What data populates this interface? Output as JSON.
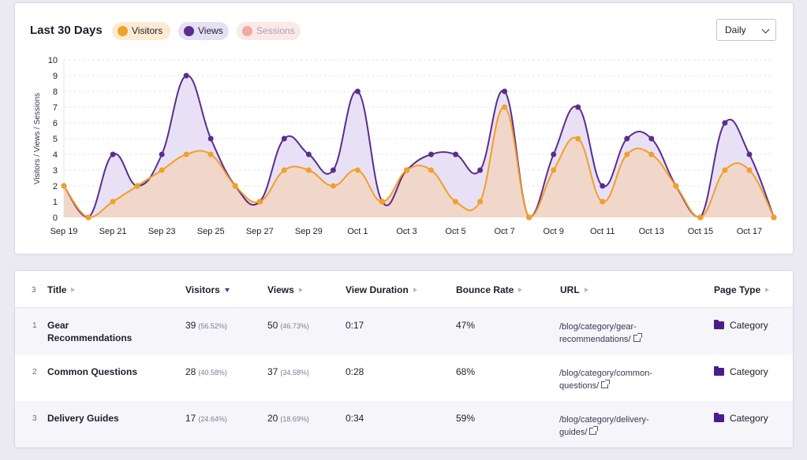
{
  "chart_card": {
    "title": "Last 30 Days",
    "legend": [
      {
        "label": "Visitors",
        "color": "#f1a028"
      },
      {
        "label": "Views",
        "color": "#5b2d8e"
      },
      {
        "label": "Sessions",
        "color": "#f2a6a6"
      }
    ],
    "range_select": "Daily"
  },
  "chart_data": {
    "type": "area",
    "ylabel": "Visitors / Views / Sessions",
    "xlabel": "",
    "ylim": [
      0,
      10
    ],
    "y_ticks": [
      "0",
      "1",
      "2",
      "3",
      "4",
      "5",
      "6",
      "7",
      "8",
      "9",
      "10"
    ],
    "x": [
      "Sep 19",
      "Sep 20",
      "Sep 21",
      "Sep 22",
      "Sep 23",
      "Sep 24",
      "Sep 25",
      "Sep 26",
      "Sep 27",
      "Sep 28",
      "Sep 29",
      "Sep 30",
      "Oct 1",
      "Oct 2",
      "Oct 3",
      "Oct 4",
      "Oct 5",
      "Oct 6",
      "Oct 7",
      "Oct 8",
      "Oct 9",
      "Oct 10",
      "Oct 11",
      "Oct 12",
      "Oct 13",
      "Oct 14",
      "Oct 15",
      "Oct 16",
      "Oct 17",
      "Oct 18"
    ],
    "x_tick_labels": [
      "Sep 19",
      "Sep 21",
      "Sep 23",
      "Sep 25",
      "Sep 27",
      "Sep 29",
      "Oct 1",
      "Oct 3",
      "Oct 5",
      "Oct 7",
      "Oct 9",
      "Oct 11",
      "Oct 13",
      "Oct 15",
      "Oct 17"
    ],
    "series": [
      {
        "name": "Views",
        "color": "#5b2d8e",
        "fill": "#e4dcf3",
        "values": [
          2,
          0,
          4,
          2,
          4,
          9,
          5,
          2,
          1,
          5,
          4,
          3,
          8,
          1,
          3,
          4,
          4,
          3,
          8,
          0,
          4,
          7,
          2,
          5,
          5,
          2,
          0,
          6,
          4,
          0
        ]
      },
      {
        "name": "Visitors",
        "color": "#f1a028",
        "fill": "#f2d3c2",
        "values": [
          2,
          0,
          1,
          2,
          3,
          4,
          4,
          2,
          1,
          3,
          3,
          2,
          3,
          1,
          3,
          3,
          1,
          1,
          7,
          0,
          3,
          5,
          1,
          4,
          4,
          2,
          0,
          3,
          3,
          0
        ]
      }
    ],
    "grid": true,
    "legend_position": "top-left"
  },
  "table": {
    "row_count": "3",
    "headers": {
      "title": "Title",
      "visitors": "Visitors",
      "views": "Views",
      "view_duration": "View Duration",
      "bounce_rate": "Bounce Rate",
      "url": "URL",
      "page_type": "Page Type"
    },
    "rows": [
      {
        "num": "1",
        "title": "Gear Recommendations",
        "visitors": "39",
        "visitors_pct": "(56.52%)",
        "views": "50",
        "views_pct": "(46.73%)",
        "duration": "0:17",
        "bounce": "47%",
        "url": "/blog/category/gear-recommendations/",
        "type": "Category"
      },
      {
        "num": "2",
        "title": "Common Questions",
        "visitors": "28",
        "visitors_pct": "(40.58%)",
        "views": "37",
        "views_pct": "(34.58%)",
        "duration": "0:28",
        "bounce": "68%",
        "url": "/blog/category/common-questions/",
        "type": "Category"
      },
      {
        "num": "3",
        "title": "Delivery Guides",
        "visitors": "17",
        "visitors_pct": "(24.64%)",
        "views": "20",
        "views_pct": "(18.69%)",
        "duration": "0:34",
        "bounce": "59%",
        "url": "/blog/category/delivery-guides/",
        "type": "Category"
      }
    ]
  }
}
